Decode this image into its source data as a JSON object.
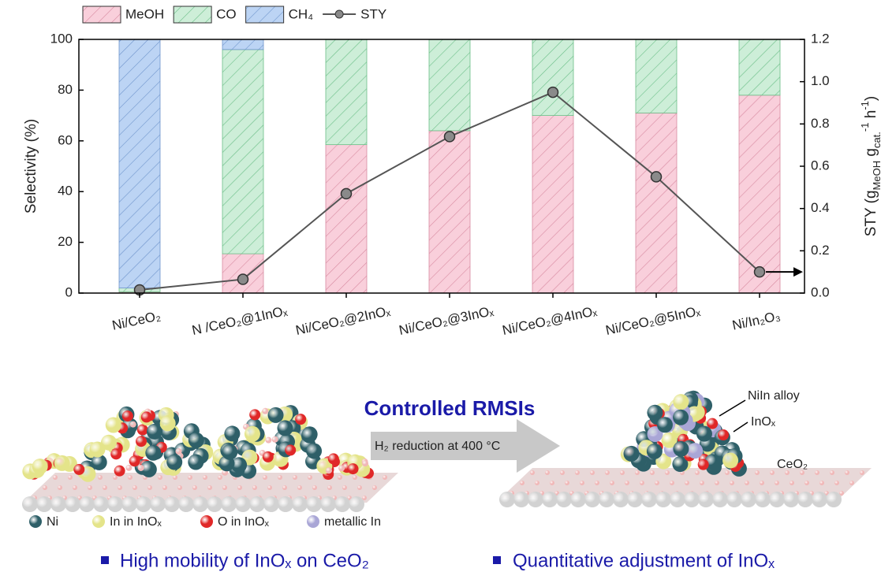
{
  "chart_data": {
    "type": "bar",
    "stacked": true,
    "categories": [
      "Ni/CeO₂",
      "N /CeO₂@1InOₓ",
      "Ni/CeO₂@2InOₓ",
      "Ni/CeO₂@3InOₓ",
      "Ni/CeO₂@4InOₓ",
      "Ni/CeO₂@5InOₓ",
      "Ni/In₂O₃"
    ],
    "series": [
      {
        "name": "MeOH",
        "color": "#f9cfdb",
        "hatch": "#d88aa1",
        "values": [
          0.5,
          15.5,
          58.5,
          64,
          70,
          71,
          78
        ]
      },
      {
        "name": "CO",
        "color": "#cdeed8",
        "hatch": "#6cbf88",
        "values": [
          1.5,
          80.5,
          41.5,
          36,
          30,
          29,
          22
        ]
      },
      {
        "name": "CH₄",
        "color": "#bcd4f4",
        "hatch": "#6f95cc",
        "values": [
          98,
          4,
          0,
          0,
          0,
          0,
          0
        ]
      },
      {
        "name": "STY",
        "type": "line",
        "axis": "y2",
        "color": "#555555",
        "values": [
          0.015,
          0.065,
          0.47,
          0.74,
          0.95,
          0.55,
          0.1
        ]
      }
    ],
    "ylabel": "Selectivity (%)",
    "y2label": [
      {
        "text": "STY (g"
      },
      {
        "text": "MeOH",
        "sub": true
      },
      {
        "text": " g"
      },
      {
        "text": "cat.",
        "sub": true
      },
      {
        "text": "-1",
        "sup": true
      },
      {
        "text": " h"
      },
      {
        "text": "-1",
        "sup": true
      },
      {
        "text": ")"
      }
    ],
    "ylim": [
      0,
      100
    ],
    "yticks": [
      0,
      20,
      40,
      60,
      80,
      100
    ],
    "y2lim": [
      0,
      1.2
    ],
    "y2ticks": [
      {
        "value": 0,
        "label": "0.0"
      },
      {
        "value": 0.2,
        "label": "0.2"
      },
      {
        "value": 0.4,
        "label": "0.4"
      },
      {
        "value": 0.6,
        "label": "0.6"
      },
      {
        "value": 0.8,
        "label": "0.8"
      },
      {
        "value": 1.0,
        "label": "1.0"
      },
      {
        "value": 1.2,
        "label": "1.2"
      }
    ]
  },
  "diagram": {
    "title": "Controlled RMSIs",
    "arrow_label": "H₂ reduction at 400 °C",
    "alloy_label": "NiIn alloy",
    "inox_label": "InOₓ",
    "support_label": "CeO₂",
    "legend": [
      "Ni",
      "In in InOₓ",
      "O in InOₓ",
      "metallic In"
    ],
    "bullets": [
      "High mobility of InOₓ on CeO₂",
      "Quantitative adjustment of InOₓ"
    ]
  }
}
